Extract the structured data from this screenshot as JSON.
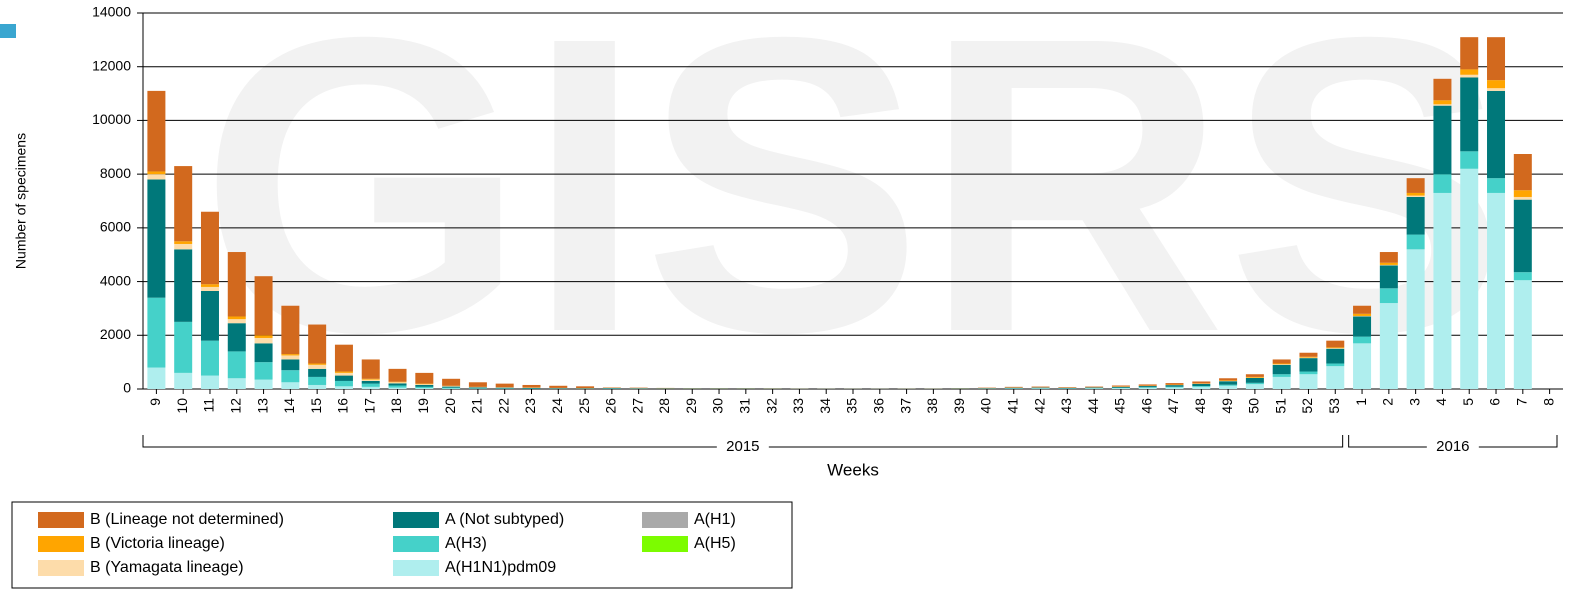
{
  "chart_data": {
    "type": "stacked_bar",
    "watermark": "GISRS",
    "y_label": "Number of specimens",
    "x_label": "Weeks",
    "ylim": [
      0,
      14000
    ],
    "yticks": [
      0,
      2000,
      4000,
      6000,
      8000,
      10000,
      12000,
      14000
    ],
    "grid": true,
    "groups": [
      {
        "label": "2015",
        "categories": [
          "9",
          "10",
          "11",
          "12",
          "13",
          "14",
          "15",
          "16",
          "17",
          "18",
          "19",
          "20",
          "21",
          "22",
          "23",
          "24",
          "25",
          "26",
          "27",
          "28",
          "29",
          "30",
          "31",
          "32",
          "33",
          "34",
          "35",
          "36",
          "37",
          "38",
          "39",
          "40",
          "41",
          "42",
          "43",
          "44",
          "45",
          "46",
          "47",
          "48",
          "49",
          "50",
          "51",
          "52",
          "53"
        ]
      },
      {
        "label": "2016",
        "categories": [
          "1",
          "2",
          "3",
          "4",
          "5",
          "6",
          "7",
          "8"
        ]
      }
    ],
    "series": [
      {
        "name": "B (Lineage not determined)",
        "color": "#d2691e",
        "values": [
          3000,
          2800,
          2700,
          2400,
          2200,
          1800,
          1450,
          1000,
          720,
          480,
          400,
          260,
          170,
          135,
          95,
          80,
          65,
          15,
          15,
          12,
          8,
          8,
          8,
          6,
          5,
          4,
          4,
          4,
          5,
          5,
          8,
          15,
          23,
          28,
          20,
          26,
          35,
          45,
          55,
          70,
          80,
          100,
          150,
          150,
          250,
          300,
          400,
          550,
          800,
          1200,
          1600,
          1350,
          0
        ]
      },
      {
        "name": "B (Victoria lineage)",
        "color": "#ffa500",
        "values": [
          100,
          100,
          100,
          100,
          100,
          50,
          50,
          50,
          30,
          20,
          20,
          10,
          5,
          5,
          5,
          5,
          5,
          5,
          3,
          3,
          2,
          2,
          2,
          2,
          1,
          1,
          1,
          1,
          1,
          1,
          2,
          3,
          5,
          5,
          4,
          5,
          10,
          10,
          15,
          15,
          20,
          30,
          30,
          30,
          30,
          80,
          80,
          100,
          150,
          200,
          300,
          250,
          0
        ]
      },
      {
        "name": "B (Yamagata lineage)",
        "color": "#fddcaa",
        "values": [
          200,
          200,
          150,
          150,
          200,
          150,
          150,
          100,
          50,
          40,
          30,
          20,
          15,
          10,
          10,
          5,
          5,
          5,
          4,
          3,
          2,
          2,
          2,
          2,
          2,
          1,
          1,
          1,
          2,
          2,
          2,
          4,
          5,
          5,
          4,
          5,
          5,
          5,
          5,
          5,
          10,
          10,
          20,
          20,
          20,
          20,
          20,
          50,
          50,
          100,
          100,
          100,
          0
        ]
      },
      {
        "name": "A (Not subtyped)",
        "color": "#00787a",
        "values": [
          4400,
          2700,
          1850,
          1050,
          700,
          400,
          300,
          200,
          100,
          80,
          70,
          40,
          30,
          25,
          20,
          15,
          12,
          15,
          12,
          10,
          8,
          8,
          8,
          7,
          6,
          5,
          5,
          5,
          6,
          6,
          8,
          12,
          20,
          22,
          18,
          22,
          35,
          45,
          60,
          80,
          130,
          180,
          350,
          500,
          550,
          750,
          850,
          1400,
          2550,
          2750,
          3250,
          2700,
          0
        ]
      },
      {
        "name": "A(H3)",
        "color": "#45d1c9",
        "values": [
          2600,
          1900,
          1300,
          1000,
          650,
          450,
          300,
          200,
          120,
          80,
          50,
          30,
          20,
          15,
          12,
          10,
          8,
          10,
          8,
          6,
          5,
          5,
          5,
          4,
          3,
          2,
          2,
          2,
          3,
          3,
          5,
          8,
          12,
          12,
          10,
          12,
          15,
          20,
          25,
          30,
          40,
          50,
          100,
          100,
          100,
          250,
          550,
          550,
          700,
          650,
          550,
          300,
          0
        ]
      },
      {
        "name": "A(H1N1)pdm09",
        "color": "#afeeee",
        "values": [
          800,
          600,
          500,
          400,
          350,
          250,
          150,
          100,
          80,
          50,
          30,
          20,
          10,
          10,
          8,
          5,
          5,
          10,
          8,
          6,
          5,
          5,
          5,
          4,
          3,
          2,
          2,
          2,
          3,
          3,
          5,
          8,
          15,
          18,
          14,
          20,
          30,
          45,
          60,
          80,
          120,
          180,
          450,
          550,
          850,
          1700,
          3200,
          5200,
          7300,
          8200,
          7300,
          4050,
          0
        ]
      },
      {
        "name": "A(H1)",
        "color": "#a9a9a9",
        "values": [
          0,
          0,
          0,
          0,
          0,
          0,
          0,
          0,
          0,
          0,
          0,
          0,
          0,
          0,
          0,
          0,
          0,
          0,
          0,
          0,
          0,
          0,
          0,
          0,
          0,
          0,
          0,
          0,
          0,
          0,
          0,
          0,
          0,
          0,
          0,
          0,
          0,
          0,
          0,
          0,
          0,
          0,
          0,
          0,
          0,
          0,
          0,
          0,
          0,
          0,
          0,
          0,
          0
        ]
      },
      {
        "name": "A(H5)",
        "color": "#7cfc00",
        "values": [
          0,
          0,
          0,
          0,
          0,
          0,
          0,
          0,
          0,
          0,
          0,
          0,
          0,
          0,
          0,
          0,
          0,
          0,
          0,
          0,
          0,
          0,
          0,
          0,
          0,
          0,
          0,
          0,
          0,
          0,
          0,
          0,
          0,
          0,
          0,
          0,
          0,
          0,
          0,
          0,
          0,
          0,
          0,
          0,
          0,
          0,
          0,
          0,
          0,
          0,
          0,
          0,
          0
        ]
      }
    ]
  }
}
